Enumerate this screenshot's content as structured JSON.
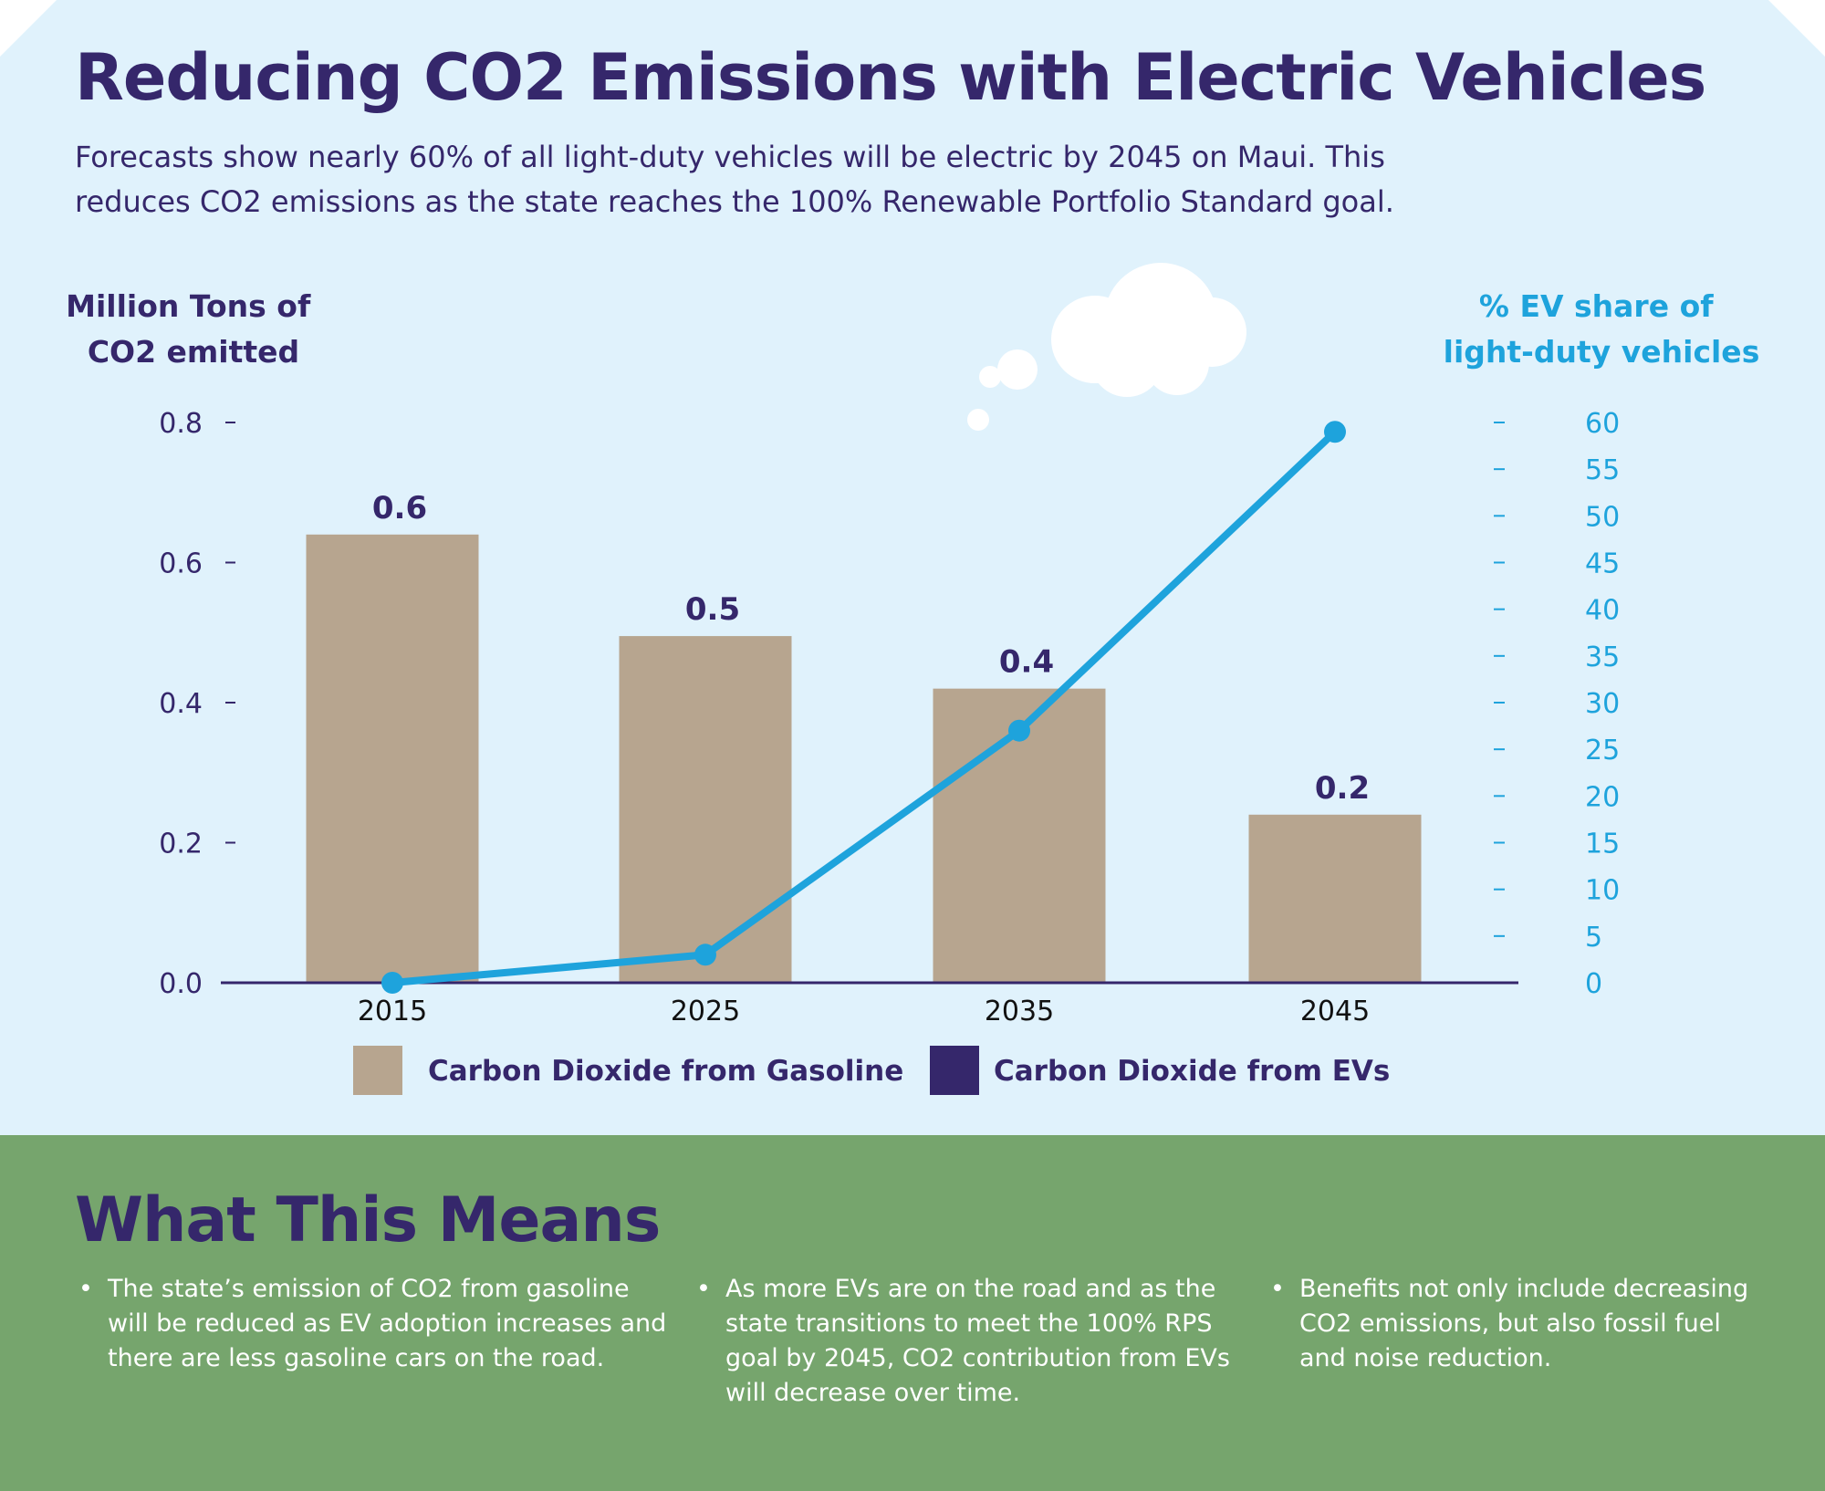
{
  "title": "Reducing CO2 Emissions with Electric Vehicles",
  "subtitle": "Forecasts show nearly 60% of all light-duty vehicles will be electric by 2045 on Maui. This reduces CO2 emissions as the state reaches the 100% Renewable Portfolio Standard goal.",
  "colors": {
    "background": "#e0f2fc",
    "title": "#35276b",
    "gasoline": "#b7a58f",
    "evs": "#35276b",
    "ev_share": "#1ea3dc",
    "bottom_panel": "#76a56d"
  },
  "chart_data": {
    "type": "bar",
    "categories": [
      "2015",
      "2025",
      "2035",
      "2045"
    ],
    "ylabel": "Million Tons of CO2 emitted",
    "ylabel_lines": [
      "Million Tons of",
      "CO2 emitted"
    ],
    "y2label": "% EV share of light-duty vehicles",
    "y2label_lines": [
      "% EV share of",
      "light-duty vehicles"
    ],
    "ylim": [
      0,
      0.8
    ],
    "y_ticks": [
      "0.0",
      "0.2",
      "0.4",
      "0.6",
      "0.8"
    ],
    "y2lim": [
      0,
      60
    ],
    "y2_ticks": [
      "0",
      "5",
      "10",
      "15",
      "20",
      "25",
      "30",
      "35",
      "40",
      "45",
      "50",
      "55",
      "60"
    ],
    "series": [
      {
        "name": "Carbon Dioxide from Gasoline",
        "type": "bar",
        "values": [
          0.64,
          0.495,
          0.42,
          0.24
        ],
        "data_labels": [
          "0.6",
          "0.5",
          "0.4",
          "0.2"
        ]
      },
      {
        "name": "Carbon Dioxide from EVs",
        "type": "bar",
        "values": [
          0,
          0,
          0,
          0
        ]
      },
      {
        "type": "line",
        "axis": "right",
        "values": [
          0,
          3,
          27,
          59
        ]
      }
    ],
    "grid": false,
    "legend": "bottom"
  },
  "means": {
    "title": "What This Means",
    "bullet": "•",
    "items": [
      "The state’s emission of CO2 from gasoline will be reduced as EV adoption increases and there are less gasoline cars on the road.",
      "As more EVs are on the road and as the state transitions to meet the 100% RPS goal by 2045, CO2 contribution from EVs will decrease over time.",
      "Benefits not only include decreasing CO2 emissions, but also fossil fuel and noise reduction."
    ]
  }
}
